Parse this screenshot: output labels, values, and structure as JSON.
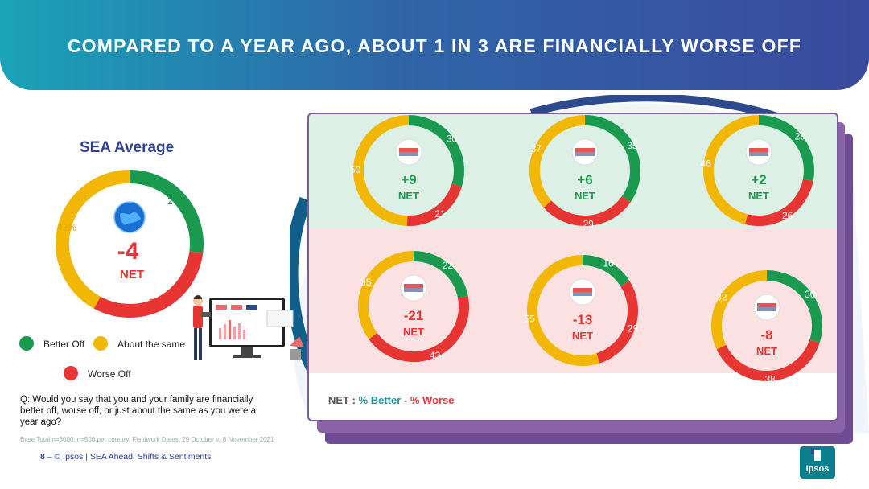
{
  "title": "COMPARED TO A YEAR AGO, ABOUT 1 IN 3 ARE FINANCIALLY WORSE OFF",
  "sea": {
    "heading": "SEA Average",
    "net_value": "-4",
    "net_word": "NET",
    "better": "27%",
    "same": "42%",
    "worse": "31%"
  },
  "legend": {
    "better": "Better Off",
    "same": "About the same",
    "worse": "Worse Off"
  },
  "colors": {
    "better": "#1a9a4f",
    "same": "#f2b705",
    "worse": "#e63532"
  },
  "question": "Q: Would you say that you and your family are financially better off, worse off, or just about the same as you were a year ago?",
  "base": "Base Total n=3000; n=500 per country, Fieldwork Dates: 29 October to 8 November  2021",
  "footer": {
    "page": "8",
    "dash": " – ",
    "text": "© Ipsos | SEA Ahead: Shifts & Sentiments"
  },
  "net_legend": {
    "prefix": "NET : ",
    "better": "% Better",
    "minus": " - ",
    "worse": "% Worse"
  },
  "logo_text": "Ipsos",
  "chart_data": [
    {
      "type": "pie",
      "name": "SEA Average",
      "segments": [
        {
          "label": "Better Off",
          "value": 27
        },
        {
          "label": "Worse Off",
          "value": 31
        },
        {
          "label": "About the same",
          "value": 42
        }
      ],
      "net": "-4"
    },
    {
      "type": "pie",
      "flag": "philippines-flag-icon",
      "segments": [
        {
          "label": "Better Off",
          "value": 30
        },
        {
          "label": "Worse Off",
          "value": 21
        },
        {
          "label": "About the same",
          "value": 50
        }
      ],
      "net": "+9"
    },
    {
      "type": "pie",
      "flag": "indonesia-flag-icon",
      "segments": [
        {
          "label": "Better Off",
          "value": 35
        },
        {
          "label": "Worse Off",
          "value": 29
        },
        {
          "label": "About the same",
          "value": 37
        }
      ],
      "net": "+6"
    },
    {
      "type": "pie",
      "flag": "malaysia-flag-icon",
      "segments": [
        {
          "label": "Better Off",
          "value": 28
        },
        {
          "label": "Worse Off",
          "value": 26
        },
        {
          "label": "About the same",
          "value": 46
        }
      ],
      "net": "+2"
    },
    {
      "type": "pie",
      "flag": "thailand-flag-icon",
      "segments": [
        {
          "label": "Better Off",
          "value": 22
        },
        {
          "label": "Worse Off",
          "value": 43
        },
        {
          "label": "About the same",
          "value": 35
        }
      ],
      "net": "-21"
    },
    {
      "type": "pie",
      "flag": "singapore-flag-icon",
      "segments": [
        {
          "label": "Better Off",
          "value": 16
        },
        {
          "label": "Worse Off",
          "value": 29
        },
        {
          "label": "About the same",
          "value": 55
        }
      ],
      "net": "-13"
    },
    {
      "type": "pie",
      "flag": "vietnam-flag-icon",
      "segments": [
        {
          "label": "Better Off",
          "value": 30
        },
        {
          "label": "Worse Off",
          "value": 38
        },
        {
          "label": "About the same",
          "value": 32
        }
      ],
      "net": "-8"
    }
  ]
}
